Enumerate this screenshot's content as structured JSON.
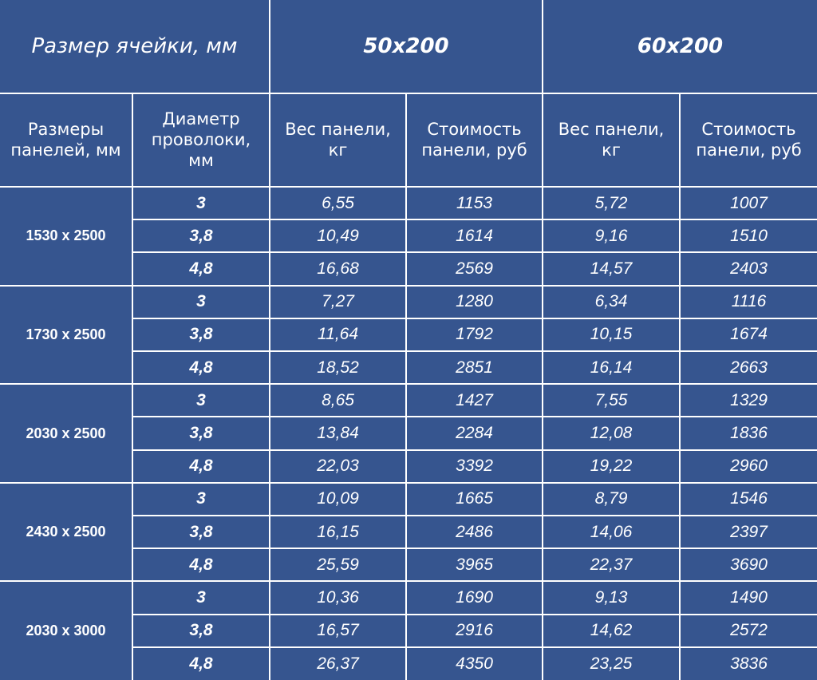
{
  "table": {
    "header": [
      [
        "Размер ячейки, мм",
        "50x200",
        "60x200"
      ],
      [
        "Размеры панелей, мм",
        "Диаметр проволоки, мм",
        "Вес панели, кг",
        "Стоимость панели, руб",
        "Вес панели, кг",
        "Стоимость панели, руб"
      ]
    ],
    "groups": [
      {
        "size": "1530 x 2500",
        "rows": [
          [
            "3",
            "6,55",
            "1153",
            "5,72",
            "1007"
          ],
          [
            "3,8",
            "10,49",
            "1614",
            "9,16",
            "1510"
          ],
          [
            "4,8",
            "16,68",
            "2569",
            "14,57",
            "2403"
          ]
        ]
      },
      {
        "size": "1730 x 2500",
        "rows": [
          [
            "3",
            "7,27",
            "1280",
            "6,34",
            "1116"
          ],
          [
            "3,8",
            "11,64",
            "1792",
            "10,15",
            "1674"
          ],
          [
            "4,8",
            "18,52",
            "2851",
            "16,14",
            "2663"
          ]
        ]
      },
      {
        "size": "2030 x 2500",
        "rows": [
          [
            "3",
            "8,65",
            "1427",
            "7,55",
            "1329"
          ],
          [
            "3,8",
            "13,84",
            "2284",
            "12,08",
            "1836"
          ],
          [
            "4,8",
            "22,03",
            "3392",
            "19,22",
            "2960"
          ]
        ]
      },
      {
        "size": "2430 x 2500",
        "rows": [
          [
            "3",
            "10,09",
            "1665",
            "8,79",
            "1546"
          ],
          [
            "3,8",
            "16,15",
            "2486",
            "14,06",
            "2397"
          ],
          [
            "4,8",
            "25,59",
            "3965",
            "22,37",
            "3690"
          ]
        ]
      },
      {
        "size": "2030 x 3000",
        "rows": [
          [
            "3",
            "10,36",
            "1690",
            "9,13",
            "1490"
          ],
          [
            "3,8",
            "16,57",
            "2916",
            "14,62",
            "2572"
          ],
          [
            "4,8",
            "26,37",
            "4350",
            "23,25",
            "3836"
          ]
        ]
      }
    ]
  }
}
